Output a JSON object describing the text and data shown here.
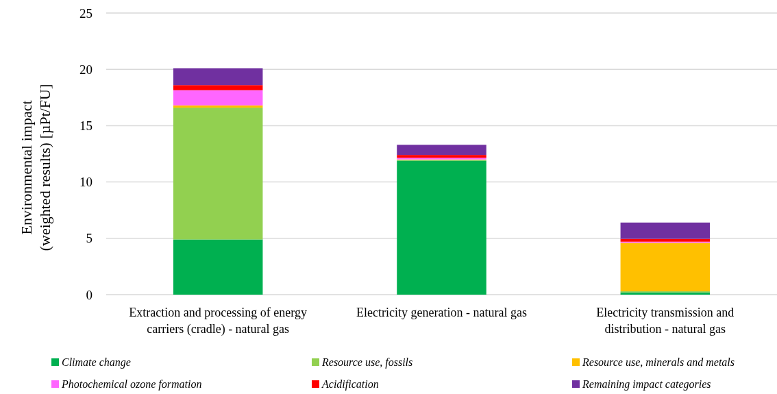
{
  "chart_data": {
    "type": "bar",
    "stacked": true,
    "ylabel": "Environmental impact\n(weighted results) [µPt/FU]",
    "categories": [
      "Extraction and processing of energy carriers (cradle) - natural gas",
      "Electricity generation - natural gas",
      "Electricity transmission and distribution - natural gas"
    ],
    "series": [
      {
        "name": "Climate change",
        "color": "#00b050",
        "values": [
          4.9,
          11.9,
          0.2
        ]
      },
      {
        "name": "Resource use, fossils",
        "color": "#92d050",
        "values": [
          11.7,
          0.05,
          0.1
        ]
      },
      {
        "name": "Resource use, minerals and metals",
        "color": "#ffc000",
        "values": [
          0.2,
          0.05,
          4.3
        ]
      },
      {
        "name": "Photochemical ozone formation",
        "color": "#ff66ff",
        "values": [
          1.35,
          0.15,
          0.1
        ]
      },
      {
        "name": "Acidification",
        "color": "#ff0000",
        "values": [
          0.45,
          0.25,
          0.25
        ]
      },
      {
        "name": "Remaining impact categories",
        "color": "#7030a0",
        "values": [
          1.5,
          0.9,
          1.45
        ]
      }
    ],
    "ylim": [
      0,
      25
    ],
    "yticks": [
      0,
      5,
      10,
      15,
      20,
      25
    ],
    "grid": "y",
    "legend": "bottom"
  }
}
